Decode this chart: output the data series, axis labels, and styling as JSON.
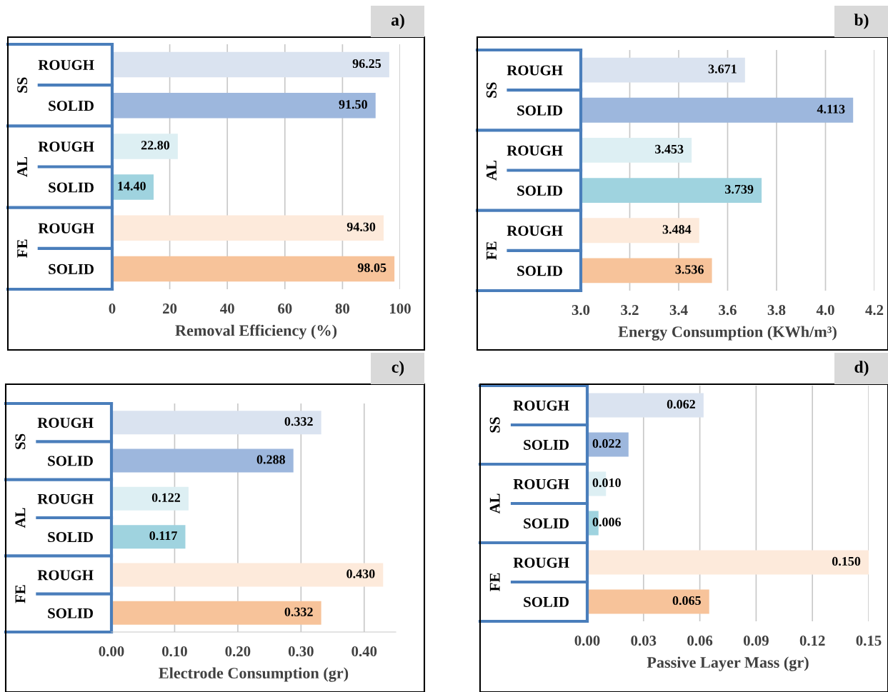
{
  "chart_data": [
    {
      "type": "bar",
      "orientation": "horizontal",
      "title": "a)",
      "xlabel": "Removal Efficiency (%)",
      "categories": [
        "ROUGH",
        "SOLID",
        "ROUGH",
        "SOLID",
        "ROUGH",
        "SOLID"
      ],
      "annotations": [
        "SS",
        "AL",
        "FE"
      ],
      "values": [
        96.25,
        91.5,
        22.8,
        14.4,
        94.3,
        98.05
      ],
      "value_labels": [
        "96.25",
        "91.50",
        "22.80",
        "14.40",
        "94.30",
        "98.05"
      ],
      "colors": [
        "#dae3f0",
        "#9db7dd",
        "#ddeff3",
        "#9fd3df",
        "#fdeadb",
        "#f7c39a"
      ],
      "xlim": [
        0,
        100
      ],
      "xticks": [
        0,
        20,
        40,
        60,
        80,
        100
      ],
      "grid": "x"
    },
    {
      "type": "bar",
      "orientation": "horizontal",
      "title": "b)",
      "xlabel": "Energy Consumption (KWh/m³)",
      "categories": [
        "ROUGH",
        "SOLID",
        "ROUGH",
        "SOLID",
        "ROUGH",
        "SOLID"
      ],
      "annotations": [
        "SS",
        "AL",
        "FE"
      ],
      "base": [
        3.0,
        3.0,
        3.0,
        3.0,
        3.0,
        3.0
      ],
      "values": [
        0.671,
        1.113,
        0.453,
        0.739,
        0.484,
        0.536
      ],
      "value_labels": [
        "3.671",
        "4.113",
        "3.453",
        "3.739",
        "3.484",
        "3.536"
      ],
      "colors": [
        "#dae3f0",
        "#9db7dd",
        "#ddeff3",
        "#9fd3df",
        "#fdeadb",
        "#f7c39a"
      ],
      "xlim": [
        3.0,
        4.2
      ],
      "xticks": [
        {
          "value": 3.0,
          "label": "3.0"
        },
        3.2,
        3.4,
        3.6,
        3.8,
        {
          "value": 4.0,
          "label": "4.0"
        },
        4.2
      ],
      "grid": "x"
    },
    {
      "type": "bar",
      "orientation": "horizontal",
      "title": "c)",
      "xlabel": "Electrode Consumption (gr)",
      "categories": [
        "ROUGH",
        "SOLID",
        "ROUGH",
        "SOLID",
        "ROUGH",
        "SOLID"
      ],
      "annotations": [
        "SS",
        "AL",
        "FE"
      ],
      "values": [
        0.332,
        0.288,
        0.122,
        0.117,
        0.43,
        0.332
      ],
      "value_labels": [
        "0.332",
        "0.288",
        "0.122",
        "0.117",
        "0.430",
        "0.332"
      ],
      "colors": [
        "#dae3f0",
        "#9db7dd",
        "#ddeff3",
        "#9fd3df",
        "#fdeadb",
        "#f7c39a"
      ],
      "xlim": [
        0,
        0.45
      ],
      "xticks": [
        {
          "value": 0,
          "label": "0.00"
        },
        {
          "value": 0.1,
          "label": "0.10"
        },
        {
          "value": 0.2,
          "label": "0.20"
        },
        {
          "value": 0.3,
          "label": "0.30"
        },
        {
          "value": 0.4,
          "label": "0.40"
        }
      ],
      "grid": "x"
    },
    {
      "type": "bar",
      "orientation": "horizontal",
      "title": "d)",
      "xlabel": "Passive Layer Mass (gr)",
      "categories": [
        "ROUGH",
        "SOLID",
        "ROUGH",
        "SOLID",
        "ROUGH",
        "SOLID"
      ],
      "annotations": [
        "SS",
        "AL",
        "FE"
      ],
      "values": [
        0.062,
        0.022,
        0.01,
        0.006,
        0.15,
        0.065
      ],
      "value_labels": [
        "0.062",
        "0.022",
        "0.010",
        "0.006",
        "0.150",
        "0.065"
      ],
      "colors": [
        "#dae3f0",
        "#9db7dd",
        "#ddeff3",
        "#9fd3df",
        "#fdeadb",
        "#f7c39a"
      ],
      "xlim": [
        0,
        0.15
      ],
      "xticks": [
        {
          "value": 0,
          "label": "0.00"
        },
        0.03,
        0.06,
        0.09,
        0.12,
        0.15
      ],
      "grid": "x"
    }
  ]
}
